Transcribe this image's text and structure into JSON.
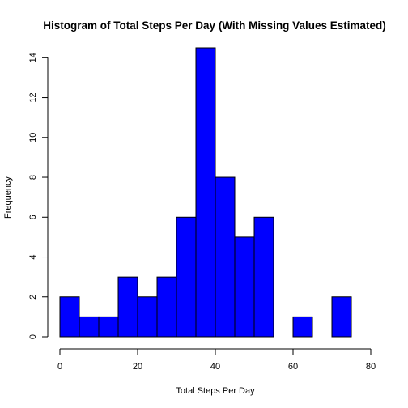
{
  "chart_data": {
    "type": "bar",
    "title": "Histogram of Total Steps Per Day (With Missing Values Estimated)",
    "xlabel": "Total Steps Per Day",
    "ylabel": "Frequency",
    "xlim": [
      0,
      80
    ],
    "ylim": [
      0,
      14.5
    ],
    "bin_width": 5,
    "bins": [
      {
        "start": 0,
        "end": 5,
        "count": 2
      },
      {
        "start": 5,
        "end": 10,
        "count": 1
      },
      {
        "start": 10,
        "end": 15,
        "count": 1
      },
      {
        "start": 15,
        "end": 20,
        "count": 3
      },
      {
        "start": 20,
        "end": 25,
        "count": 2
      },
      {
        "start": 25,
        "end": 30,
        "count": 3
      },
      {
        "start": 30,
        "end": 35,
        "count": 6
      },
      {
        "start": 35,
        "end": 40,
        "count": 14.5
      },
      {
        "start": 40,
        "end": 45,
        "count": 8
      },
      {
        "start": 45,
        "end": 50,
        "count": 5
      },
      {
        "start": 50,
        "end": 55,
        "count": 6
      },
      {
        "start": 55,
        "end": 60,
        "count": 0
      },
      {
        "start": 60,
        "end": 65,
        "count": 1
      },
      {
        "start": 65,
        "end": 70,
        "count": 0
      },
      {
        "start": 70,
        "end": 75,
        "count": 2
      }
    ],
    "x_ticks": [
      0,
      20,
      40,
      60,
      80
    ],
    "x_tick_labels": [
      "0",
      "20",
      "40",
      "60",
      "80"
    ],
    "y_ticks": [
      0,
      2,
      4,
      6,
      8,
      10,
      12,
      14
    ],
    "y_tick_labels": [
      "0",
      "2",
      "4",
      "6",
      "8",
      "10",
      "12",
      "14"
    ],
    "bar_color": "#0000ff",
    "grid": false
  }
}
